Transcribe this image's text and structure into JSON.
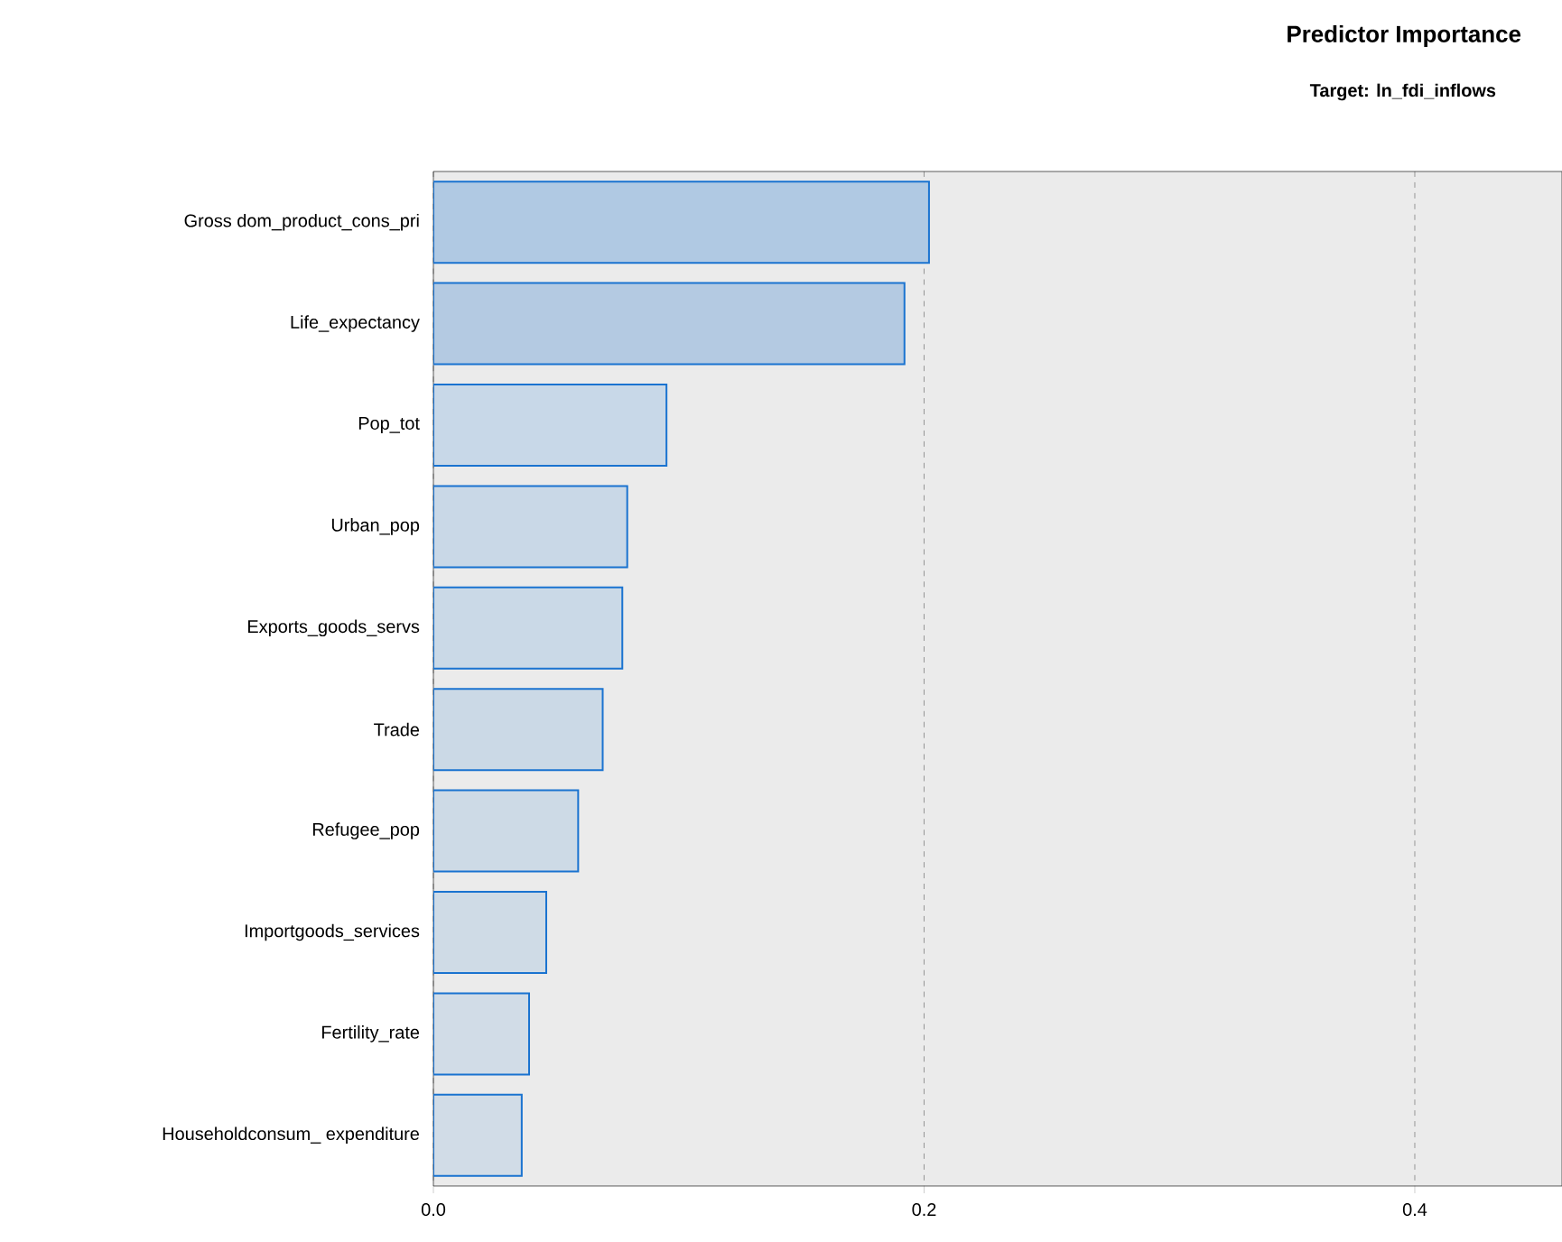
{
  "chart_data": {
    "type": "bar",
    "orientation": "horizontal",
    "title": "Predictor Importance",
    "subtitle": "Target: ln_fdi_inflows",
    "categories": [
      "Gross dom_product_cons_pri",
      "Life_expectancy",
      "Pop_tot",
      "Urban_pop",
      "Exports_goods_servs",
      "Trade",
      "Refugee_pop",
      "Importgoods_services",
      "Fertility_rate",
      "Householdconsum_ expenditure"
    ],
    "values": [
      0.202,
      0.192,
      0.095,
      0.079,
      0.077,
      0.069,
      0.059,
      0.046,
      0.039,
      0.036
    ],
    "colors": [
      "#b0c9e3",
      "#b4cae2",
      "#c8d8e8",
      "#c9d8e7",
      "#cad9e7",
      "#cbd9e6",
      "#cddae6",
      "#cfdbe6",
      "#d1dce7",
      "#d1dce7"
    ],
    "xlim": [
      0,
      0.46
    ],
    "xticks": [
      {
        "value": 0,
        "label": "0.0"
      },
      {
        "value": 0.2,
        "label": "0.2"
      },
      {
        "value": 0.4,
        "label": "0.4"
      }
    ],
    "grid": "x"
  }
}
